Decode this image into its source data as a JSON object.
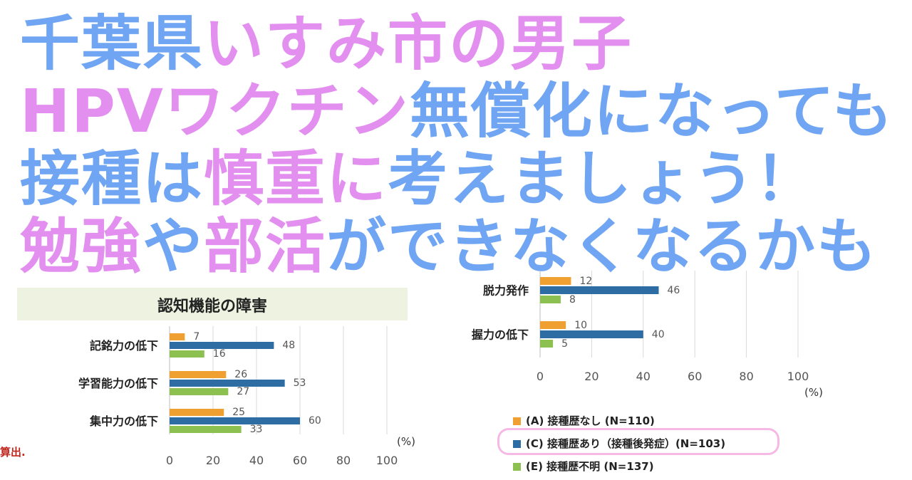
{
  "headline": {
    "lines": [
      [
        {
          "text": "千葉県",
          "color": "blue"
        },
        {
          "text": "いすみ市の",
          "color": "pink"
        },
        {
          "text": "男子",
          "color": "pink"
        }
      ],
      [
        {
          "text": "HPVワクチン",
          "color": "pink"
        },
        {
          "text": "無償化になっても",
          "color": "blue"
        }
      ],
      [
        {
          "text": "接種は",
          "color": "blue"
        },
        {
          "text": "慎重に",
          "color": "pink"
        },
        {
          "text": "考えましょう！",
          "color": "blue"
        }
      ],
      [
        {
          "text": "勉強",
          "color": "pink"
        },
        {
          "text": "や",
          "color": "blue"
        },
        {
          "text": "部活",
          "color": "pink"
        },
        {
          "text": "ができなくなるかも",
          "color": "blue"
        }
      ]
    ],
    "colors": {
      "blue": "#6fa5f2",
      "pink": "#e38fef"
    }
  },
  "footnote": "算出.",
  "series_colors": [
    "#f0a030",
    "#2e6da4",
    "#8cc152"
  ],
  "legend": [
    {
      "label": "(A) 接種歴なし (N=110)",
      "color": "#f0a030"
    },
    {
      "label": "(C) 接種歴あり（接種後発症）(N=103)",
      "color": "#2e6da4",
      "highlighted": true
    },
    {
      "label": "(E) 接種歴不明 (N=137)",
      "color": "#8cc152"
    }
  ],
  "chart_data": [
    {
      "type": "bar",
      "orientation": "horizontal",
      "title": "認知機能の障害",
      "categories": [
        "記銘力の低下",
        "学習能力の低下",
        "集中力の低下"
      ],
      "series": [
        {
          "name": "(A) 接種歴なし (N=110)",
          "values": [
            7,
            26,
            25
          ]
        },
        {
          "name": "(C) 接種歴あり（接種後発症）(N=103)",
          "values": [
            48,
            53,
            60
          ]
        },
        {
          "name": "(E) 接種歴不明 (N=137)",
          "values": [
            16,
            27,
            33
          ]
        }
      ],
      "xlim": [
        0,
        100
      ],
      "xticks": [
        0,
        20,
        40,
        60,
        80,
        100
      ],
      "xlabel": "(%)",
      "grid": true,
      "legend_position": "bottom-right"
    },
    {
      "type": "bar",
      "orientation": "horizontal",
      "title": "",
      "categories": [
        "脱力発作",
        "握力の低下"
      ],
      "series": [
        {
          "name": "(A) 接種歴なし (N=110)",
          "values": [
            12,
            10
          ]
        },
        {
          "name": "(C) 接種歴あり（接種後発症）(N=103)",
          "values": [
            46,
            40
          ]
        },
        {
          "name": "(E) 接種歴不明 (N=137)",
          "values": [
            8,
            5
          ]
        }
      ],
      "xlim": [
        0,
        100
      ],
      "xticks": [
        0,
        20,
        40,
        60,
        80,
        100
      ],
      "xlabel": "(%)",
      "grid": true,
      "legend_position": "bottom"
    }
  ]
}
